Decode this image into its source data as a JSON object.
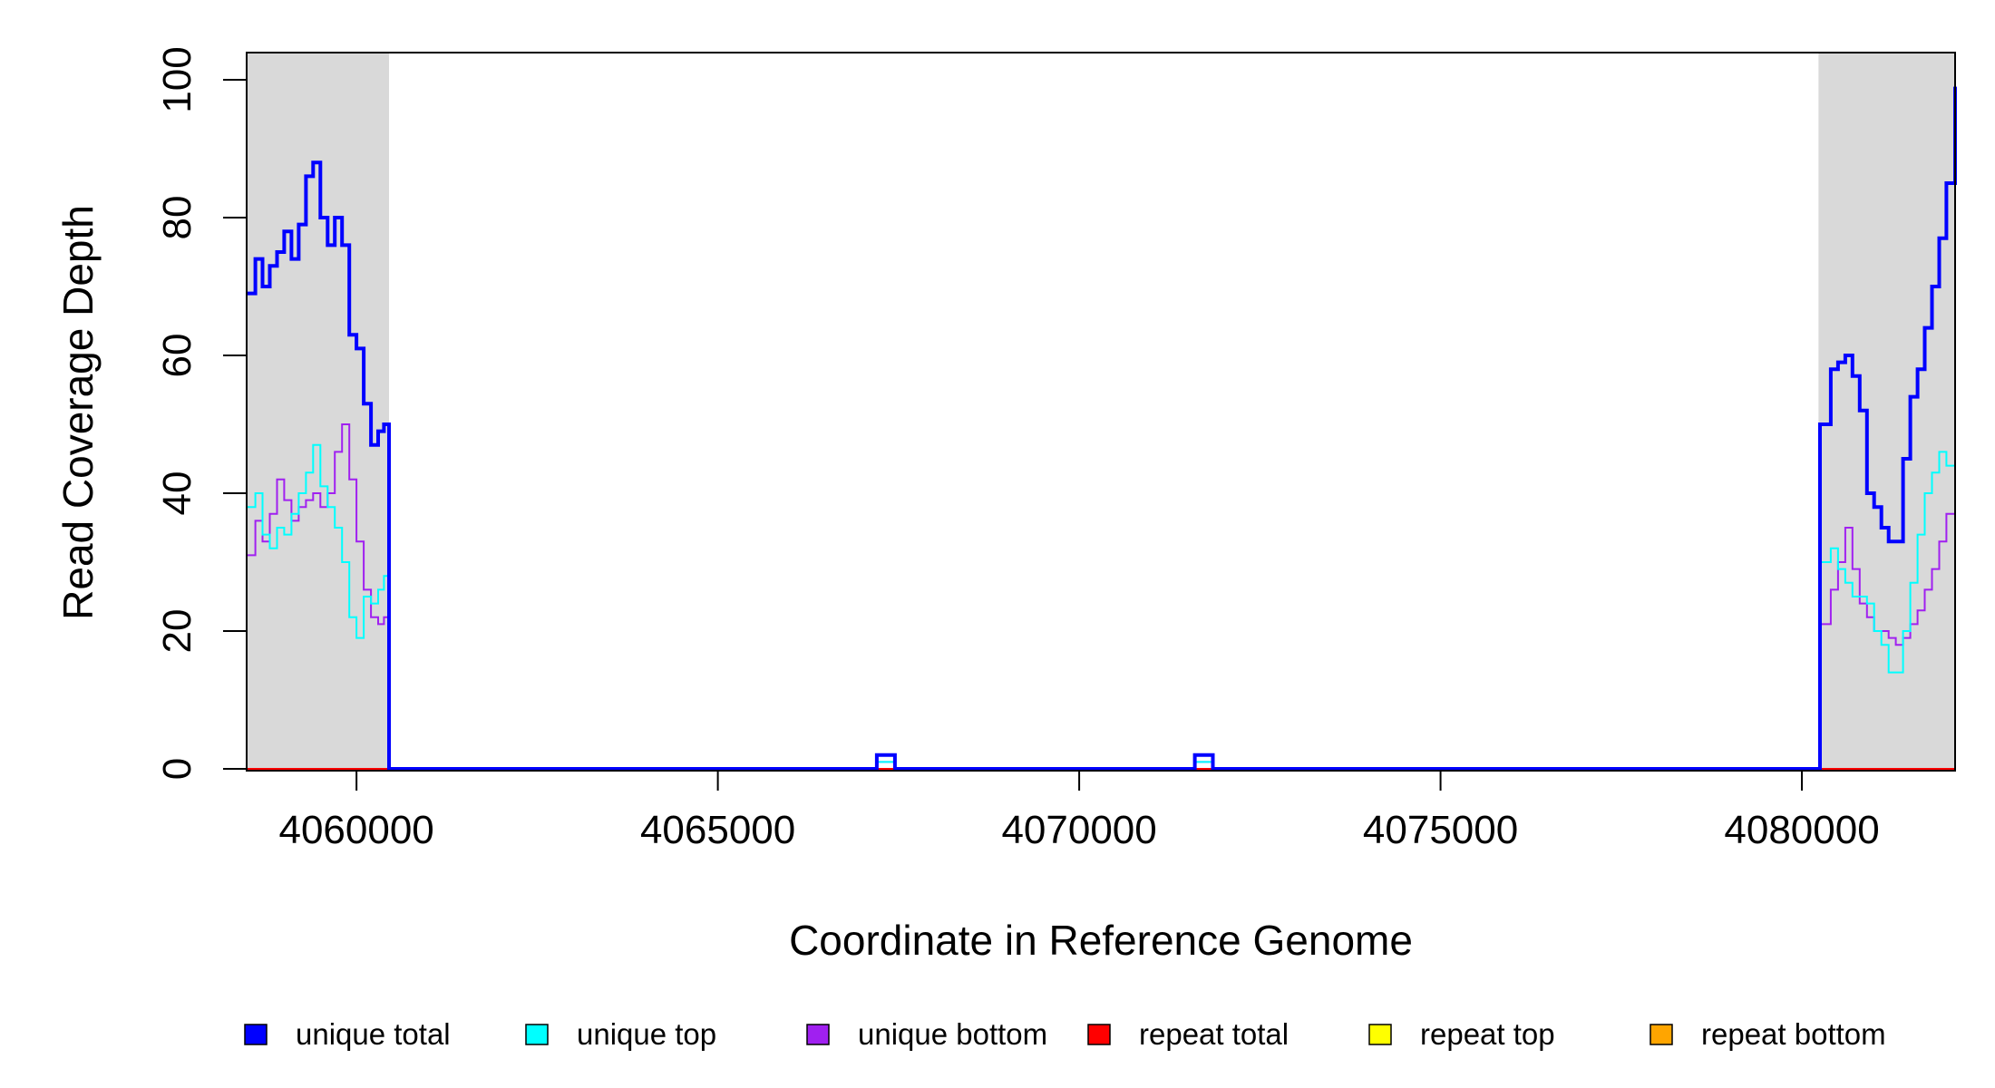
{
  "chart_data": {
    "type": "line",
    "xlabel": "Coordinate in Reference Genome",
    "ylabel": "Read Coverage Depth",
    "xlim": [
      4058480,
      4082120
    ],
    "ylim": [
      0,
      100
    ],
    "x_ticks": [
      4060000,
      4065000,
      4070000,
      4075000,
      4080000
    ],
    "y_ticks": [
      0,
      20,
      40,
      60,
      80,
      100
    ],
    "x_tick_labels": [
      "4060000",
      "4065000",
      "4070000",
      "4075000",
      "4080000"
    ],
    "y_tick_labels": [
      "0",
      "20",
      "40",
      "60",
      "80",
      "100"
    ],
    "shaded_regions": [
      [
        4058480,
        4060450
      ],
      [
        4080230,
        4082120
      ]
    ],
    "grid": false,
    "legend_position": "bottom",
    "legend": [
      {
        "name": "unique total",
        "color": "#0000FF"
      },
      {
        "name": "unique top",
        "color": "#00FFFF"
      },
      {
        "name": "unique bottom",
        "color": "#A020F0"
      },
      {
        "name": "repeat total",
        "color": "#FF0000"
      },
      {
        "name": "repeat top",
        "color": "#FFFF00"
      },
      {
        "name": "repeat bottom",
        "color": "#FFA500"
      }
    ],
    "series": [
      {
        "name": "unique total",
        "color": "#0000FF",
        "x": [
          4058480,
          4058600,
          4058700,
          4058800,
          4058900,
          4059000,
          4059100,
          4059200,
          4059300,
          4059400,
          4059500,
          4059600,
          4059700,
          4059800,
          4059900,
          4060000,
          4060100,
          4060200,
          4060300,
          4060380,
          4060450,
          4060480,
          4067150,
          4067200,
          4067400,
          4067450,
          4071550,
          4071600,
          4071800,
          4071850,
          4080230,
          4080250,
          4080400,
          4080500,
          4080600,
          4080700,
          4080800,
          4080900,
          4081000,
          4081100,
          4081200,
          4081300,
          4081400,
          4081500,
          4081600,
          4081700,
          4081800,
          4081900,
          4082000,
          4082120
        ],
        "y": [
          69,
          74,
          70,
          73,
          75,
          78,
          74,
          79,
          86,
          88,
          80,
          76,
          80,
          76,
          63,
          61,
          53,
          47,
          49,
          50,
          0,
          0,
          0,
          2,
          2,
          0,
          0,
          2,
          2,
          0,
          0,
          50,
          58,
          59,
          60,
          57,
          52,
          40,
          38,
          35,
          33,
          33,
          45,
          54,
          58,
          64,
          70,
          77,
          85,
          99
        ]
      },
      {
        "name": "unique top",
        "color": "#00FFFF",
        "x": [
          4058480,
          4058600,
          4058700,
          4058800,
          4058900,
          4059000,
          4059100,
          4059200,
          4059300,
          4059400,
          4059500,
          4059600,
          4059700,
          4059800,
          4059900,
          4060000,
          4060100,
          4060200,
          4060300,
          4060380,
          4060450,
          4060480,
          4067150,
          4067200,
          4067400,
          4067450,
          4071550,
          4071600,
          4071800,
          4071850,
          4080230,
          4080250,
          4080400,
          4080500,
          4080600,
          4080700,
          4080800,
          4080900,
          4081000,
          4081100,
          4081200,
          4081300,
          4081400,
          4081500,
          4081600,
          4081700,
          4081800,
          4081900,
          4082000,
          4082120
        ],
        "y": [
          38,
          40,
          34,
          32,
          35,
          34,
          37,
          40,
          43,
          47,
          41,
          38,
          35,
          30,
          22,
          19,
          25,
          24,
          26,
          28,
          0,
          0,
          0,
          1,
          1,
          0,
          0,
          1,
          1,
          0,
          0,
          30,
          32,
          29,
          27,
          25,
          25,
          24,
          20,
          18,
          14,
          14,
          20,
          27,
          34,
          40,
          43,
          46,
          44,
          51
        ]
      },
      {
        "name": "unique bottom",
        "color": "#A020F0",
        "x": [
          4058480,
          4058600,
          4058700,
          4058800,
          4058900,
          4059000,
          4059100,
          4059200,
          4059300,
          4059400,
          4059500,
          4059600,
          4059700,
          4059800,
          4059900,
          4060000,
          4060100,
          4060200,
          4060300,
          4060380,
          4060450,
          4060480,
          4067150,
          4067200,
          4067400,
          4067450,
          4071550,
          4071600,
          4071800,
          4071850,
          4080230,
          4080250,
          4080400,
          4080500,
          4080600,
          4080700,
          4080800,
          4080900,
          4081000,
          4081100,
          4081200,
          4081300,
          4081400,
          4081500,
          4081600,
          4081700,
          4081800,
          4081900,
          4082000,
          4082120
        ],
        "y": [
          31,
          36,
          33,
          37,
          42,
          39,
          36,
          38,
          39,
          40,
          38,
          40,
          46,
          50,
          42,
          33,
          26,
          22,
          21,
          22,
          0,
          0,
          0,
          1,
          1,
          0,
          0,
          1,
          1,
          0,
          0,
          21,
          26,
          30,
          35,
          29,
          24,
          22,
          20,
          20,
          19,
          18,
          19,
          21,
          23,
          26,
          29,
          33,
          37,
          45
        ]
      },
      {
        "name": "repeat total",
        "color": "#FF0000",
        "x": [
          4058480,
          4082120
        ],
        "y": [
          0,
          0
        ]
      },
      {
        "name": "repeat top",
        "color": "#FFFF00",
        "x": [
          4058480,
          4082120
        ],
        "y": [
          0,
          0
        ]
      },
      {
        "name": "repeat bottom",
        "color": "#FFA500",
        "x": [
          4058480,
          4082120
        ],
        "y": [
          0,
          0
        ]
      }
    ]
  }
}
